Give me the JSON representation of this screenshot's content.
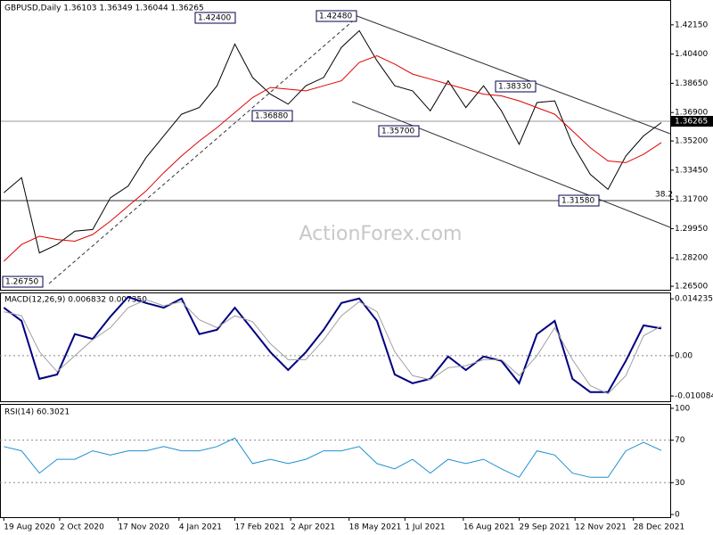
{
  "chart_data": [
    {
      "type": "line",
      "title": "GBPUSD,Daily  1.36103 1.36349 1.36044 1.36265",
      "watermark": "ActionForex.com",
      "last_price_label": "1.36265",
      "annotations": [
        "1.42400",
        "1.42480",
        "1.36880",
        "1.35700",
        "1.38330",
        "1.31580",
        "1.26750",
        "38.2"
      ],
      "x": [
        "2020-08-19",
        "2020-09-02",
        "2020-09-16",
        "2020-09-30",
        "2020-10-14",
        "2020-10-28",
        "2020-11-11",
        "2020-11-25",
        "2020-12-09",
        "2020-12-23",
        "2021-01-06",
        "2021-01-20",
        "2021-02-03",
        "2021-02-17",
        "2021-03-03",
        "2021-03-17",
        "2021-03-31",
        "2021-04-14",
        "2021-04-28",
        "2021-05-12",
        "2021-05-26",
        "2021-06-09",
        "2021-06-23",
        "2021-07-07",
        "2021-07-21",
        "2021-08-04",
        "2021-08-18",
        "2021-09-01",
        "2021-09-15",
        "2021-09-29",
        "2021-10-13",
        "2021-10-27",
        "2021-11-10",
        "2021-11-24",
        "2021-12-08",
        "2021-12-22",
        "2022-01-05",
        "2022-01-19"
      ],
      "xlim": [
        "2020-08-16",
        "2022-01-26"
      ],
      "ylim": [
        1.2629,
        1.4353
      ],
      "grid": false,
      "yticks": [
        {
          "value": 1.4215,
          "label": "1.42150"
        },
        {
          "value": 1.404,
          "label": "1.40400"
        },
        {
          "value": 1.3865,
          "label": "1.38650"
        },
        {
          "value": 1.369,
          "label": "1.36900"
        },
        {
          "value": 1.352,
          "label": "1.35200"
        },
        {
          "value": 1.3345,
          "label": "1.33450"
        },
        {
          "value": 1.317,
          "label": "1.31700"
        },
        {
          "value": 1.2995,
          "label": "1.29950"
        },
        {
          "value": 1.282,
          "label": "1.28200"
        },
        {
          "value": 1.265,
          "label": "1.26500"
        }
      ],
      "series": [
        {
          "color": "#000000",
          "values": [
            1.321,
            1.33,
            1.285,
            1.29,
            1.298,
            1.299,
            1.318,
            1.325,
            1.342,
            1.355,
            1.368,
            1.372,
            1.385,
            1.41,
            1.39,
            1.38,
            1.374,
            1.385,
            1.39,
            1.408,
            1.418,
            1.4,
            1.385,
            1.382,
            1.37,
            1.388,
            1.372,
            1.385,
            1.37,
            1.35,
            1.375,
            1.376,
            1.35,
            1.332,
            1.323,
            1.343,
            1.355,
            1.363
          ]
        },
        {
          "color": "#e00000",
          "values": [
            1.28,
            1.29,
            1.295,
            1.293,
            1.292,
            1.296,
            1.304,
            1.313,
            1.322,
            1.333,
            1.343,
            1.352,
            1.36,
            1.369,
            1.378,
            1.384,
            1.383,
            1.382,
            1.385,
            1.388,
            1.399,
            1.403,
            1.398,
            1.392,
            1.389,
            1.386,
            1.383,
            1.38,
            1.379,
            1.376,
            1.372,
            1.368,
            1.358,
            1.348,
            1.34,
            1.339,
            1.344,
            1.351
          ]
        }
      ]
    },
    {
      "type": "line",
      "title": "MACD(12,26,9) 0.006832 0.007350",
      "x": [
        "2020-08-19",
        "2020-09-02",
        "2020-09-16",
        "2020-09-30",
        "2020-10-14",
        "2020-10-28",
        "2020-11-11",
        "2020-11-25",
        "2020-12-09",
        "2020-12-23",
        "2021-01-06",
        "2021-01-20",
        "2021-02-03",
        "2021-02-17",
        "2021-03-03",
        "2021-03-17",
        "2021-03-31",
        "2021-04-14",
        "2021-04-28",
        "2021-05-12",
        "2021-05-26",
        "2021-06-09",
        "2021-06-23",
        "2021-07-07",
        "2021-07-21",
        "2021-08-04",
        "2021-08-18",
        "2021-09-01",
        "2021-09-15",
        "2021-09-29",
        "2021-10-13",
        "2021-10-27",
        "2021-11-10",
        "2021-11-24",
        "2021-12-08",
        "2021-12-22",
        "2022-01-05",
        "2022-01-19"
      ],
      "xlim": [
        "2020-08-16",
        "2022-01-26"
      ],
      "ylim": [
        -0.0114,
        0.0156
      ],
      "grid": "inner-dotted",
      "yticks": [
        0.014235,
        {
          "value": 0,
          "label": "0.00"
        },
        -0.010084
      ],
      "series": [
        {
          "color": "#000080",
          "values": [
            0.012,
            0.0087,
            -0.0058,
            -0.0047,
            0.0054,
            0.0042,
            0.0098,
            0.0147,
            0.0132,
            0.012,
            0.0143,
            0.0054,
            0.0065,
            0.012,
            0.0065,
            0.0009,
            -0.0036,
            0.0009,
            0.0065,
            0.0132,
            0.0143,
            0.0087,
            -0.0047,
            -0.0069,
            -0.0058,
            -0.0002,
            -0.0036,
            -0.0002,
            -0.0013,
            -0.0069,
            0.0054,
            0.0087,
            -0.0058,
            -0.0091,
            -0.0091,
            -0.0013,
            0.0076,
            0.0068
          ]
        },
        {
          "color": "#a0a0a0",
          "values": [
            0.011,
            0.01,
            0.001,
            -0.004,
            0,
            0.004,
            0.007,
            0.012,
            0.014,
            0.0125,
            0.0135,
            0.009,
            0.007,
            0.01,
            0.0085,
            0.003,
            -0.001,
            -0.001,
            0.004,
            0.01,
            0.0135,
            0.011,
            0.001,
            -0.005,
            -0.006,
            -0.003,
            -0.0025,
            -0.001,
            -0.001,
            -0.005,
            0,
            0.007,
            -0.001,
            -0.0075,
            -0.0095,
            -0.005,
            0.005,
            0.0074
          ]
        }
      ]
    },
    {
      "type": "line",
      "title": "RSI(14) 60.3021",
      "x": [
        "2020-08-19",
        "2020-09-02",
        "2020-09-16",
        "2020-09-30",
        "2020-10-14",
        "2020-10-28",
        "2020-11-11",
        "2020-11-25",
        "2020-12-09",
        "2020-12-23",
        "2021-01-06",
        "2021-01-20",
        "2021-02-03",
        "2021-02-17",
        "2021-03-03",
        "2021-03-17",
        "2021-03-31",
        "2021-04-14",
        "2021-04-28",
        "2021-05-12",
        "2021-05-26",
        "2021-06-09",
        "2021-06-23",
        "2021-07-07",
        "2021-07-21",
        "2021-08-04",
        "2021-08-18",
        "2021-09-01",
        "2021-09-15",
        "2021-09-29",
        "2021-10-13",
        "2021-10-27",
        "2021-11-10",
        "2021-11-24",
        "2021-12-08",
        "2021-12-22",
        "2022-01-05",
        "2022-01-19"
      ],
      "xlim": [
        "2020-08-16",
        "2022-01-26"
      ],
      "ylim": [
        -2.5,
        103.3
      ],
      "grid": "inner-dotted",
      "yticks": [
        100,
        70,
        30,
        0
      ],
      "xticks": [
        {
          "value": "2020-08-19",
          "label": "19 Aug 2020"
        },
        {
          "value": "2020-10-02",
          "label": "2 Oct 2020"
        },
        {
          "value": "2020-11-17",
          "label": "17 Nov 2020"
        },
        {
          "value": "2021-01-04",
          "label": "4 Jan 2021"
        },
        {
          "value": "2021-02-17",
          "label": "17 Feb 2021"
        },
        {
          "value": "2021-04-02",
          "label": "2 Apr 2021"
        },
        {
          "value": "2021-05-18",
          "label": "18 May 2021"
        },
        {
          "value": "2021-07-01",
          "label": "1 Jul 2021"
        },
        {
          "value": "2021-08-16",
          "label": "16 Aug 2021"
        },
        {
          "value": "2021-09-29",
          "label": "29 Sep 2021"
        },
        {
          "value": "2021-11-12",
          "label": "12 Nov 2021"
        },
        {
          "value": "2021-12-28",
          "label": "28 Dec 2021"
        }
      ],
      "series": [
        {
          "color": "#1e90d0",
          "values": [
            64,
            60,
            39,
            52,
            52,
            60,
            56,
            60,
            60,
            64,
            60,
            60,
            64,
            72,
            48,
            52,
            48,
            52,
            60,
            60,
            64,
            48,
            43,
            52,
            39,
            52,
            48,
            52,
            43,
            35,
            60,
            56,
            39,
            35,
            35,
            60,
            68,
            60.3
          ]
        }
      ]
    }
  ]
}
